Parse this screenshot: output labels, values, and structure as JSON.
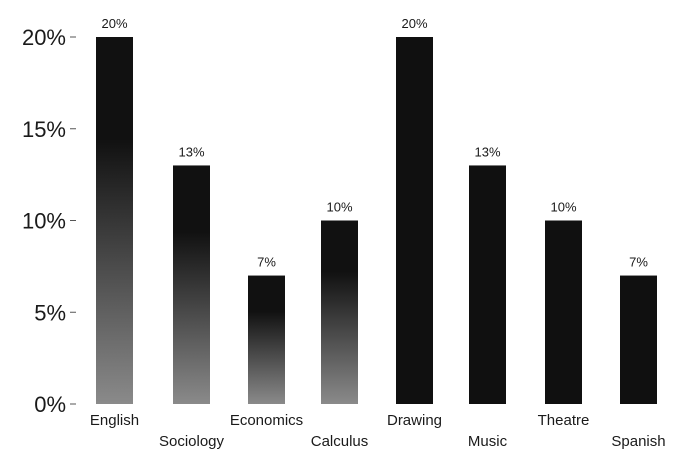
{
  "chart_data": {
    "type": "bar",
    "categories": [
      "English",
      "Sociology",
      "Economics",
      "Calculus",
      "Drawing",
      "Music",
      "Theatre",
      "Spanish"
    ],
    "values": [
      20,
      13,
      7,
      10,
      20,
      13,
      10,
      7
    ],
    "data_labels": [
      "20%",
      "13%",
      "7%",
      "10%",
      "20%",
      "13%",
      "10%",
      "7%"
    ],
    "yticks": [
      {
        "value": 0,
        "label": "0%"
      },
      {
        "value": 5,
        "label": "5%"
      },
      {
        "value": 10,
        "label": "10%"
      },
      {
        "value": 15,
        "label": "15%"
      },
      {
        "value": 20,
        "label": "20%"
      }
    ],
    "ylim": [
      0,
      20
    ],
    "grid": false,
    "legend": "none",
    "colors": {
      "gradient_top": "#111111",
      "gradient_bottom": "#8a8a8a",
      "solid": "#101010"
    },
    "bar_styles": [
      "gradient",
      "gradient",
      "gradient",
      "gradient",
      "solid",
      "solid",
      "solid",
      "solid"
    ]
  }
}
